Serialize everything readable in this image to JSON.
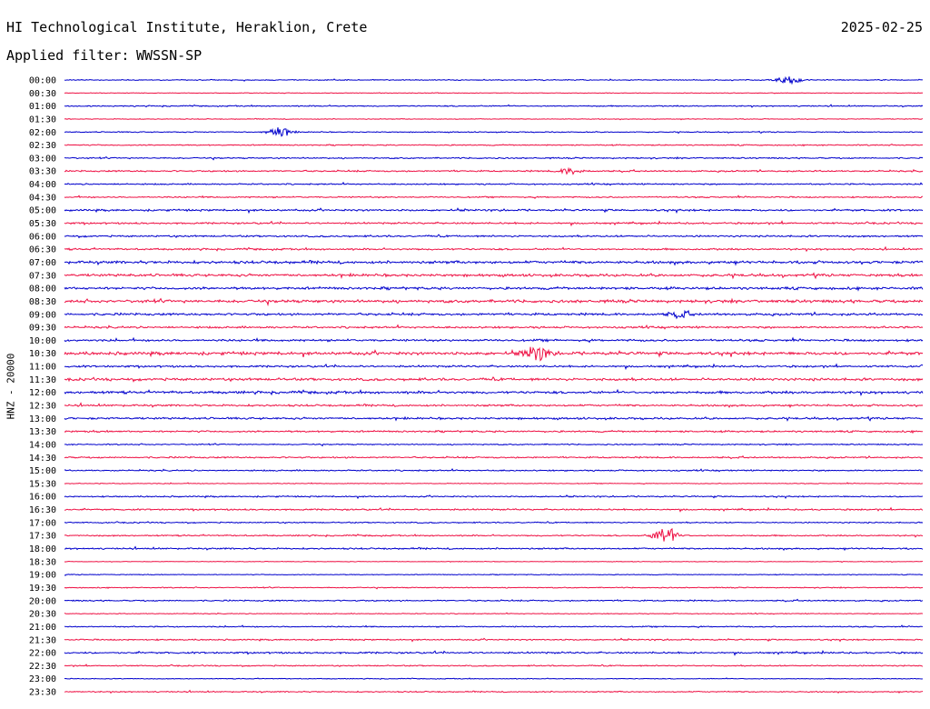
{
  "header": {
    "title": "HI Technological Institute, Heraklion, Crete",
    "date": "2025-02-25",
    "filter_label": "Applied filter:",
    "filter_value": "WWSSN-SP"
  },
  "channel_label": "HNZ - 20000",
  "chart_data": {
    "type": "line",
    "title": "HI Technological Institute, Heraklion, Crete",
    "date": "2025-02-25",
    "filter": "WWSSN-SP",
    "ylabel": "HNZ - 20000",
    "tick_labels": [
      "00:00",
      "00:30",
      "01:00",
      "01:30",
      "02:00",
      "02:30",
      "03:00",
      "03:30",
      "04:00",
      "04:30",
      "05:00",
      "05:30",
      "06:00",
      "06:30",
      "07:00",
      "07:30",
      "08:00",
      "08:30",
      "09:00",
      "09:30",
      "10:00",
      "10:30",
      "11:00",
      "11:30",
      "12:00",
      "12:30",
      "13:00",
      "13:30",
      "14:00",
      "14:30",
      "15:00",
      "15:30",
      "16:00",
      "16:30",
      "17:00",
      "17:30",
      "18:00",
      "18:30",
      "19:00",
      "19:30",
      "20:00",
      "20:30",
      "21:00",
      "21:30",
      "22:00",
      "22:30",
      "23:00",
      "23:30"
    ],
    "line_colors": [
      "#0000cc",
      "#ee1144"
    ],
    "noise_levels": [
      0.5,
      0.3,
      0.6,
      0.4,
      0.5,
      0.6,
      0.7,
      0.8,
      0.7,
      0.7,
      1.0,
      0.9,
      0.9,
      0.9,
      1.4,
      1.3,
      1.3,
      1.5,
      1.2,
      1.0,
      1.1,
      1.6,
      1.0,
      1.3,
      1.3,
      1.0,
      1.0,
      0.9,
      0.6,
      0.8,
      0.7,
      0.4,
      0.7,
      0.8,
      0.6,
      0.7,
      0.8,
      0.3,
      0.4,
      0.5,
      0.7,
      0.4,
      0.6,
      0.7,
      0.9,
      0.6,
      0.4,
      0.6
    ],
    "events": [
      {
        "trace": "00:00",
        "minute": 25.3,
        "amplitude": 4
      },
      {
        "trace": "02:00",
        "minute": 7.5,
        "amplitude": 5
      },
      {
        "trace": "03:30",
        "minute": 17.7,
        "amplitude": 3
      },
      {
        "trace": "09:00",
        "minute": 21.5,
        "amplitude": 3
      },
      {
        "trace": "10:30",
        "minute": 16.5,
        "amplitude": 8
      },
      {
        "trace": "17:30",
        "minute": 21.0,
        "amplitude": 9
      }
    ]
  }
}
